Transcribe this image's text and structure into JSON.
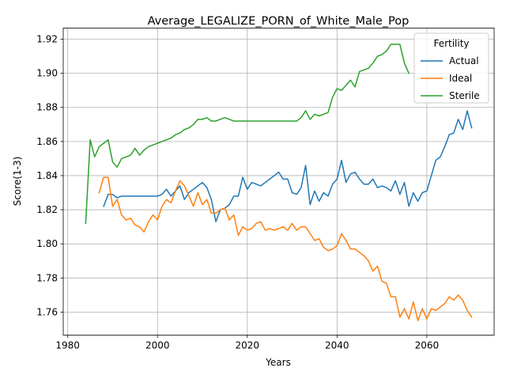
{
  "chart_data": {
    "type": "line",
    "title": "Average_LEGALIZE_PORN_of_White_Male_Pop",
    "xlabel": "Years",
    "ylabel": "Score(1-3)",
    "xlim": [
      1979,
      2075
    ],
    "ylim": [
      1.7465,
      1.9265
    ],
    "xticks": [
      1980,
      2000,
      2020,
      2040,
      2060
    ],
    "xtick_labels": [
      "1980",
      "2000",
      "2020",
      "2040",
      "2060"
    ],
    "yticks": [
      1.76,
      1.78,
      1.8,
      1.82,
      1.84,
      1.86,
      1.88,
      1.9,
      1.92
    ],
    "ytick_labels": [
      "1.76",
      "1.78",
      "1.80",
      "1.82",
      "1.84",
      "1.86",
      "1.88",
      "1.90",
      "1.92"
    ],
    "grid": true,
    "legend": {
      "title": "Fertility",
      "position": "top-right"
    },
    "series": [
      {
        "name": "Actual",
        "color": "#1f77b4",
        "x": [
          1988,
          1989,
          1990,
          1991,
          1992,
          1993,
          1994,
          1995,
          1996,
          1997,
          1998,
          1999,
          2000,
          2001,
          2002,
          2003,
          2004,
          2005,
          2006,
          2007,
          2008,
          2009,
          2010,
          2011,
          2012,
          2013,
          2014,
          2015,
          2016,
          2017,
          2018,
          2019,
          2020,
          2021,
          2022,
          2023,
          2024,
          2025,
          2026,
          2027,
          2028,
          2029,
          2030,
          2031,
          2032,
          2033,
          2034,
          2035,
          2036,
          2037,
          2038,
          2039,
          2040,
          2041,
          2042,
          2043,
          2044,
          2045,
          2046,
          2047,
          2048,
          2049,
          2050,
          2051,
          2052,
          2053,
          2054,
          2055,
          2056,
          2057,
          2058,
          2059,
          2060,
          2061,
          2062,
          2063,
          2064,
          2065,
          2066,
          2067,
          2068,
          2069,
          2070
        ],
        "y": [
          1.822,
          1.829,
          1.829,
          1.827,
          1.828,
          1.828,
          1.828,
          1.828,
          1.828,
          1.828,
          1.828,
          1.828,
          1.828,
          1.829,
          1.832,
          1.828,
          1.831,
          1.834,
          1.826,
          1.83,
          1.832,
          1.834,
          1.836,
          1.833,
          1.826,
          1.813,
          1.82,
          1.821,
          1.823,
          1.828,
          1.828,
          1.839,
          1.832,
          1.836,
          1.835,
          1.834,
          1.836,
          1.838,
          1.84,
          1.842,
          1.838,
          1.838,
          1.83,
          1.829,
          1.833,
          1.846,
          1.823,
          1.831,
          1.825,
          1.83,
          1.828,
          1.835,
          1.838,
          1.849,
          1.836,
          1.841,
          1.842,
          1.838,
          1.835,
          1.835,
          1.838,
          1.833,
          1.834,
          1.833,
          1.831,
          1.837,
          1.829,
          1.836,
          1.822,
          1.83,
          1.825,
          1.83,
          1.831,
          1.84,
          1.849,
          1.851,
          1.857,
          1.864,
          1.865,
          1.873,
          1.867,
          1.878,
          1.868
        ]
      },
      {
        "name": "Ideal",
        "color": "#ff7f0e",
        "x": [
          1987,
          1988,
          1989,
          1990,
          1991,
          1992,
          1993,
          1994,
          1995,
          1996,
          1997,
          1998,
          1999,
          2000,
          2001,
          2002,
          2003,
          2004,
          2005,
          2006,
          2007,
          2008,
          2009,
          2010,
          2011,
          2012,
          2013,
          2014,
          2015,
          2016,
          2017,
          2018,
          2019,
          2020,
          2021,
          2022,
          2023,
          2024,
          2025,
          2026,
          2027,
          2028,
          2029,
          2030,
          2031,
          2032,
          2033,
          2034,
          2035,
          2036,
          2037,
          2038,
          2039,
          2040,
          2041,
          2042,
          2043,
          2044,
          2045,
          2046,
          2047,
          2048,
          2049,
          2050,
          2051,
          2052,
          2053,
          2054,
          2055,
          2056,
          2057,
          2058,
          2059,
          2060,
          2061,
          2062,
          2063,
          2064,
          2065,
          2066,
          2067,
          2068,
          2069,
          2070
        ],
        "y": [
          1.83,
          1.839,
          1.839,
          1.822,
          1.826,
          1.817,
          1.814,
          1.815,
          1.811,
          1.81,
          1.807,
          1.813,
          1.817,
          1.814,
          1.822,
          1.826,
          1.824,
          1.831,
          1.837,
          1.834,
          1.828,
          1.822,
          1.83,
          1.823,
          1.826,
          1.818,
          1.818,
          1.82,
          1.821,
          1.814,
          1.817,
          1.805,
          1.81,
          1.808,
          1.809,
          1.812,
          1.813,
          1.808,
          1.809,
          1.808,
          1.809,
          1.81,
          1.808,
          1.812,
          1.808,
          1.81,
          1.81,
          1.806,
          1.802,
          1.803,
          1.798,
          1.796,
          1.797,
          1.799,
          1.806,
          1.802,
          1.797,
          1.797,
          1.795,
          1.793,
          1.79,
          1.784,
          1.787,
          1.778,
          1.777,
          1.769,
          1.769,
          1.757,
          1.762,
          1.756,
          1.766,
          1.755,
          1.762,
          1.756,
          1.762,
          1.761,
          1.763,
          1.765,
          1.769,
          1.767,
          1.77,
          1.767,
          1.761,
          1.757
        ]
      },
      {
        "name": "Sterile",
        "color": "#2ca02c",
        "x": [
          1984,
          1985,
          1986,
          1987,
          1988,
          1989,
          1990,
          1991,
          1992,
          1993,
          1994,
          1995,
          1996,
          1997,
          1998,
          1999,
          2000,
          2001,
          2002,
          2003,
          2004,
          2005,
          2006,
          2007,
          2008,
          2009,
          2010,
          2011,
          2012,
          2013,
          2014,
          2015,
          2016,
          2017,
          2018,
          2019,
          2020,
          2021,
          2022,
          2023,
          2024,
          2025,
          2026,
          2027,
          2028,
          2029,
          2030,
          2031,
          2032,
          2033,
          2034,
          2035,
          2036,
          2037,
          2038,
          2039,
          2040,
          2041,
          2042,
          2043,
          2044,
          2045,
          2046,
          2047,
          2048,
          2049,
          2050,
          2051,
          2052,
          2053,
          2054,
          2055,
          2056
        ],
        "y": [
          1.812,
          1.861,
          1.851,
          1.857,
          1.859,
          1.861,
          1.848,
          1.845,
          1.85,
          1.851,
          1.852,
          1.856,
          1.852,
          1.855,
          1.857,
          1.858,
          1.859,
          1.86,
          1.861,
          1.862,
          1.864,
          1.865,
          1.867,
          1.868,
          1.87,
          1.873,
          1.873,
          1.874,
          1.872,
          1.872,
          1.873,
          1.874,
          1.873,
          1.872,
          1.872,
          1.872,
          1.872,
          1.872,
          1.872,
          1.872,
          1.872,
          1.872,
          1.872,
          1.872,
          1.872,
          1.872,
          1.872,
          1.872,
          1.874,
          1.878,
          1.873,
          1.876,
          1.875,
          1.876,
          1.877,
          1.886,
          1.891,
          1.89,
          1.893,
          1.896,
          1.892,
          1.901,
          1.902,
          1.903,
          1.906,
          1.91,
          1.911,
          1.913,
          1.917,
          1.917,
          1.917,
          1.906,
          1.9
        ]
      }
    ]
  }
}
